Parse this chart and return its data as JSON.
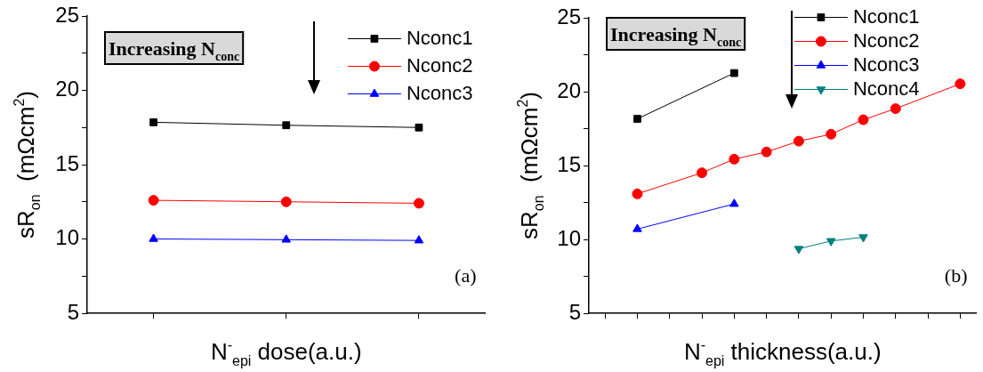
{
  "chart_data": [
    {
      "type": "line",
      "xlabel": "N$^{-}$$_{epi}$ dose(a.u.)",
      "ylabel": "sR$_{on}$  (mΩcm$^{2}$)",
      "categories": [
        null,
        null,
        null
      ],
      "series": [
        {
          "name": "Nconc1",
          "color": "#000000",
          "marker": "square",
          "values": [
            17.85,
            17.65,
            17.5
          ]
        },
        {
          "name": "Nconc2",
          "color": "#ff0000",
          "marker": "circle",
          "values": [
            12.6,
            12.5,
            12.4
          ]
        },
        {
          "name": "Nconc3",
          "color": "#0000ff",
          "marker": "triangle",
          "values": [
            10.0,
            9.95,
            9.9
          ]
        }
      ],
      "ylim": [
        5,
        25
      ],
      "yticks": [
        5,
        {
          "value": 7.5,
          "label": null
        },
        10,
        {
          "value": 12.5,
          "label": null
        },
        15,
        {
          "value": 17.5,
          "label": null
        },
        20,
        {
          "value": 22.5,
          "label": null
        },
        25
      ],
      "grid": false,
      "legend": "top right",
      "tick_labels": "y",
      "line_style": "solid",
      "annotations": [
        "Increasing N$_{conc}$",
        "(a)"
      ]
    },
    {
      "type": "line",
      "xlabel": "N$^{-}$$_{epi}$ thickness(a.u.)",
      "ylabel": "sR$_{on}$  (mΩcm$^{2}$)",
      "categories": [
        null,
        null,
        null,
        null,
        null,
        null,
        null,
        null,
        null,
        null,
        null,
        null
      ],
      "series": [
        {
          "name": "Nconc1",
          "color": "#000000",
          "marker": "square",
          "values": [
            null,
            18.16,
            null,
            null,
            21.26,
            null,
            null,
            null,
            null,
            null,
            null,
            null
          ]
        },
        {
          "name": "Nconc2",
          "color": "#ff0000",
          "marker": "circle",
          "values": [
            null,
            13.08,
            null,
            14.51,
            15.43,
            15.92,
            16.65,
            17.12,
            18.1,
            18.85,
            null,
            20.53
          ]
        },
        {
          "name": "Nconc3",
          "color": "#0000ff",
          "marker": "triangle",
          "values": [
            null,
            10.7,
            null,
            null,
            12.4,
            null,
            null,
            null,
            null,
            null,
            null,
            null
          ]
        },
        {
          "name": "Nconc4",
          "color": "#008080",
          "marker": "triangle-down",
          "values": [
            null,
            null,
            null,
            null,
            null,
            null,
            9.36,
            9.89,
            10.15,
            null,
            null,
            null
          ]
        }
      ],
      "ylim": [
        5,
        25
      ],
      "yticks": [
        5,
        {
          "value": 7.5,
          "label": null
        },
        10,
        {
          "value": 12.5,
          "label": null
        },
        15,
        {
          "value": 17.5,
          "label": null
        },
        20,
        {
          "value": 22.5,
          "label": null
        },
        25
      ],
      "grid": false,
      "legend": "top right",
      "tick_labels": "y",
      "line_style": "solid",
      "annotations": [
        "Increasing N$_{conc}$",
        "(b)"
      ]
    }
  ]
}
